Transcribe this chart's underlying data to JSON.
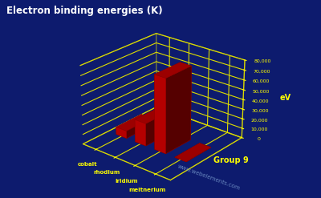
{
  "title": "Electron binding energies (K)",
  "elements": [
    "cobalt",
    "rhodium",
    "iridium",
    "meitnerium"
  ],
  "values": [
    7709,
    23220,
    76111,
    100
  ],
  "ylabel": "eV",
  "group_label": "Group 9",
  "yticks": [
    0,
    10000,
    20000,
    30000,
    40000,
    50000,
    60000,
    70000,
    80000
  ],
  "ytick_labels": [
    "0",
    "10,000",
    "20,000",
    "30,000",
    "40,000",
    "50,000",
    "60,000",
    "70,000",
    "80,000"
  ],
  "ylim": [
    0,
    80000
  ],
  "bar_color": "#cc0000",
  "grid_color": "#dddd00",
  "background_color": "#0d1b6e",
  "text_color": "#ffff00",
  "title_color": "#ffffff",
  "watermark": "www.webelements.com",
  "watermark_color": "#7799cc",
  "elev": 25,
  "azim": -50
}
